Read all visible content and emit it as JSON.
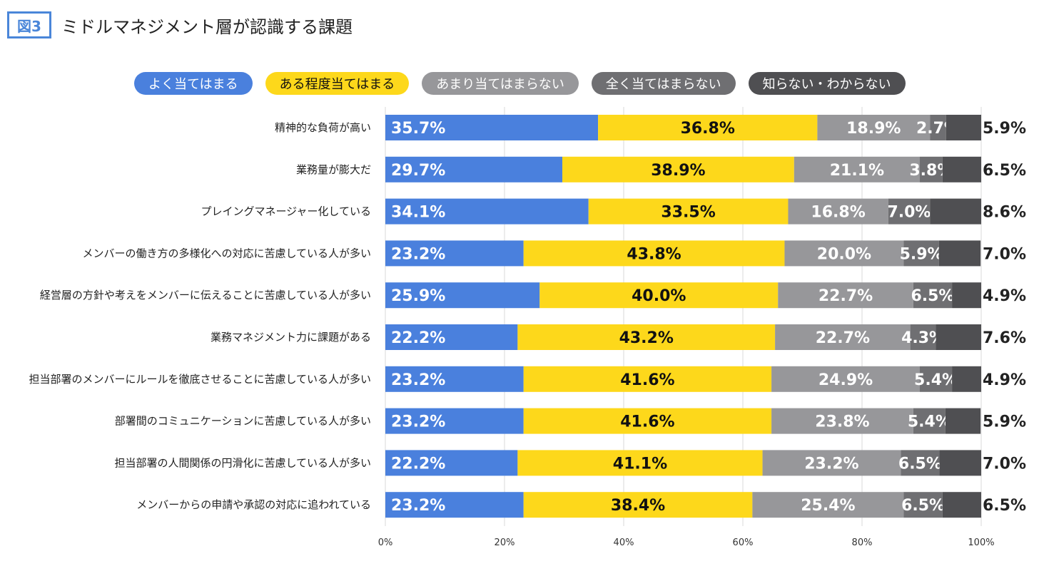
{
  "figure": {
    "badge": "図3",
    "title": "ミドルマネジメント層が認識する課題"
  },
  "chart_data": {
    "type": "bar",
    "orientation": "horizontal",
    "stacked": true,
    "title": "ミドルマネジメント層が認識する課題",
    "categories": [
      "精神的な負荷が高い",
      "業務量が膨大だ",
      "プレイングマネージャー化している",
      "メンバーの働き方の多様化への対応に苦慮している人が多い",
      "経営層の方針や考えをメンバーに伝えることに苦慮している人が多い",
      "業務マネジメント力に課題がある",
      "担当部署のメンバーにルールを徹底させることに苦慮している人が多い",
      "部署間のコミュニケーションに苦慮している人が多い",
      "担当部署の人間関係の円滑化に苦慮している人が多い",
      "メンバーからの申請や承認の対応に追われている"
    ],
    "series": [
      {
        "name": "よく当てはまる",
        "color": "#4a80dd",
        "label_color": "#ffffff",
        "values": [
          35.7,
          29.7,
          34.1,
          23.2,
          25.9,
          22.2,
          23.2,
          23.2,
          22.2,
          23.2
        ]
      },
      {
        "name": "ある程度当てはまる",
        "color": "#fdd81b",
        "label_color": "#111111",
        "values": [
          36.8,
          38.9,
          33.5,
          43.8,
          40.0,
          43.2,
          41.6,
          41.6,
          41.1,
          38.4
        ]
      },
      {
        "name": "あまり当てはまらない",
        "color": "#97979a",
        "label_color": "#ffffff",
        "values": [
          18.9,
          21.1,
          16.8,
          20.0,
          22.7,
          22.7,
          24.9,
          23.8,
          23.2,
          25.4
        ]
      },
      {
        "name": "全く当てはまらない",
        "color": "#6f6f72",
        "label_color": "#ffffff",
        "values": [
          2.7,
          3.8,
          7.0,
          5.9,
          6.5,
          4.3,
          5.4,
          5.4,
          6.5,
          6.5
        ]
      },
      {
        "name": "知らない・わからない",
        "color": "#4f4f52",
        "label_color": "#222222",
        "values": [
          5.9,
          6.5,
          8.6,
          7.0,
          4.9,
          7.6,
          4.9,
          5.9,
          7.0,
          6.5
        ]
      }
    ],
    "xlim": [
      0,
      100
    ],
    "x_ticks": [
      "0%",
      "20%",
      "40%",
      "60%",
      "80%",
      "100%"
    ],
    "value_suffix": "%",
    "grid": true,
    "legend_position": "top"
  }
}
